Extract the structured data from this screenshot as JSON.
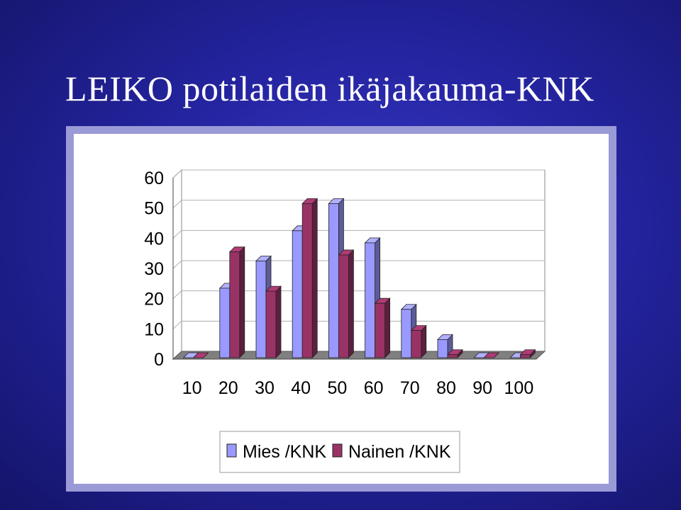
{
  "title": "LEIKO potilaiden ikäjakauma-KNK",
  "colors": {
    "background": "#2a2aa8",
    "frame": "#9a9ad6",
    "mies": "#9999ff",
    "nainen": "#993366"
  },
  "chart_data": {
    "type": "bar",
    "style": "3d-clustered-column",
    "title": "",
    "xlabel": "",
    "ylabel": "",
    "categories": [
      "10",
      "20",
      "30",
      "40",
      "50",
      "60",
      "70",
      "80",
      "90",
      "100"
    ],
    "ylim": [
      0,
      60
    ],
    "yticks": [
      0,
      10,
      20,
      30,
      40,
      50,
      60
    ],
    "grid": true,
    "legend_position": "bottom-center",
    "series": [
      {
        "name": "Mies /KNK",
        "color": "#9999ff",
        "values": [
          0,
          23,
          32,
          42,
          51,
          38,
          16,
          6,
          0,
          0
        ]
      },
      {
        "name": "Nainen /KNK",
        "color": "#993366",
        "values": [
          0,
          35,
          22,
          51,
          34,
          18,
          9,
          1,
          0,
          1
        ]
      }
    ]
  }
}
